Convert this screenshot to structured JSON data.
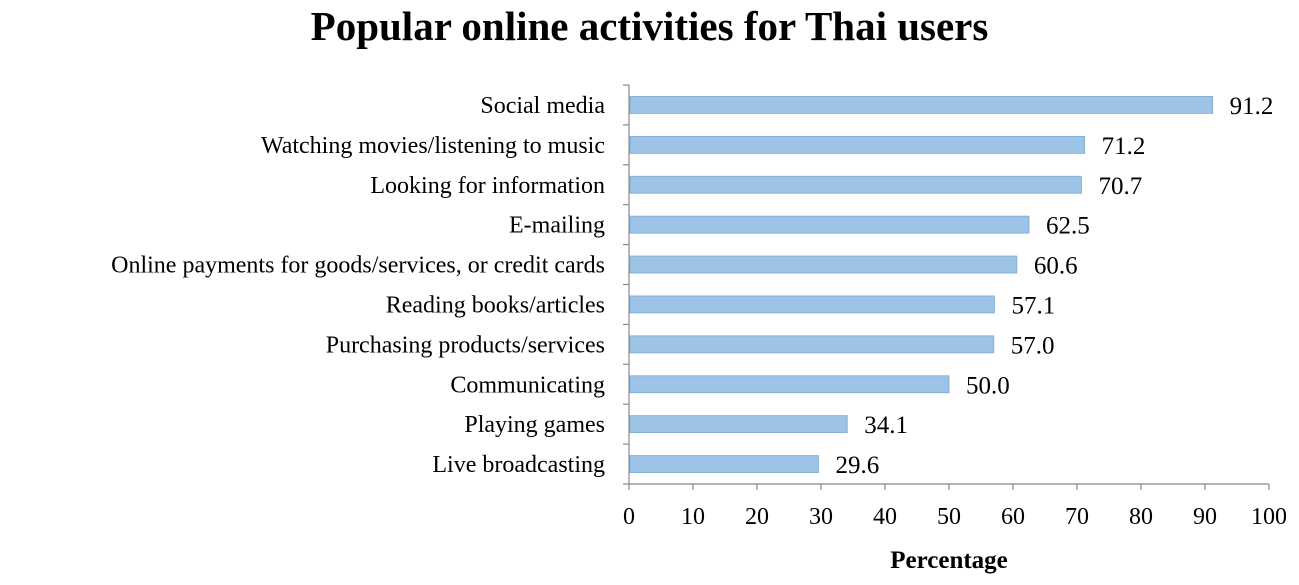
{
  "chart_data": {
    "type": "bar",
    "orientation": "horizontal",
    "title": "Popular online activities for Thai users",
    "xlabel": "Percentage",
    "ylabel": "",
    "xlim": [
      0,
      100
    ],
    "xticks": [
      0,
      10,
      20,
      30,
      40,
      50,
      60,
      70,
      80,
      90,
      100
    ],
    "categories": [
      "Social media",
      "Watching movies/listening to music",
      "Looking for information",
      "E-mailing",
      "Online payments for goods/services, or credit cards",
      "Reading books/articles",
      "Purchasing products/services",
      "Communicating",
      "Playing games",
      "Live broadcasting"
    ],
    "values": [
      91.2,
      71.2,
      70.7,
      62.5,
      60.6,
      57.1,
      57.0,
      50.0,
      34.1,
      29.6
    ],
    "value_labels": [
      "91.2",
      "71.2",
      "70.7",
      "62.5",
      "60.6",
      "57.1",
      "57.0",
      "50.0",
      "34.1",
      "29.6"
    ],
    "bar_color": "#9dc3e6",
    "bar_edge_color": "#7fa9d4",
    "grid": false,
    "legend": "none"
  }
}
